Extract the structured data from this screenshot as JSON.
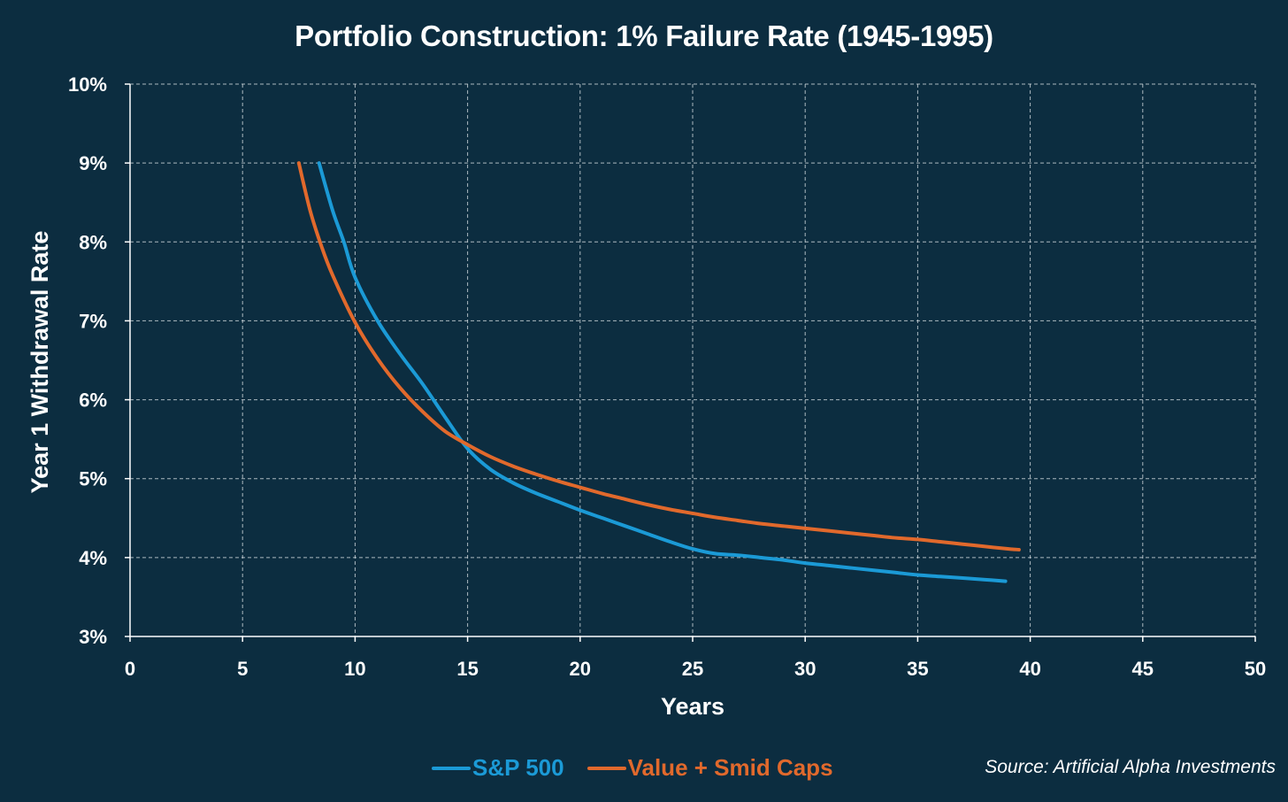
{
  "chart_data": {
    "type": "line",
    "title": "Portfolio Construction: 1% Failure Rate (1945-1995)",
    "xlabel": "Years",
    "ylabel": "Year 1 Withdrawal Rate",
    "xlim": [
      0,
      50
    ],
    "ylim": [
      3,
      10
    ],
    "x_ticks": [
      0,
      5,
      10,
      15,
      20,
      25,
      30,
      35,
      40,
      45,
      50
    ],
    "x_tick_labels": [
      "0",
      "5",
      "10",
      "15",
      "20",
      "25",
      "30",
      "35",
      "40",
      "45",
      "50"
    ],
    "y_ticks": [
      3,
      4,
      5,
      6,
      7,
      8,
      9,
      10
    ],
    "y_tick_labels": [
      "3%",
      "4%",
      "5%",
      "6%",
      "7%",
      "8%",
      "9%",
      "10%"
    ],
    "grid": true,
    "legend_position": "bottom",
    "source": "Source: Artificial Alpha Investments",
    "series": [
      {
        "name": "S&P 500",
        "color": "#1b9ad6",
        "points": [
          [
            8.4,
            9.0
          ],
          [
            9.0,
            8.4
          ],
          [
            9.5,
            8.0
          ],
          [
            10.0,
            7.55
          ],
          [
            11.0,
            7.0
          ],
          [
            12.0,
            6.58
          ],
          [
            13.0,
            6.2
          ],
          [
            14.0,
            5.78
          ],
          [
            15.0,
            5.38
          ],
          [
            16.0,
            5.12
          ],
          [
            17.0,
            4.95
          ],
          [
            18.0,
            4.82
          ],
          [
            19.0,
            4.71
          ],
          [
            20.0,
            4.6
          ],
          [
            21.0,
            4.5
          ],
          [
            22.0,
            4.4
          ],
          [
            23.0,
            4.3
          ],
          [
            24.0,
            4.2
          ],
          [
            25.0,
            4.11
          ],
          [
            26.0,
            4.05
          ],
          [
            27.0,
            4.03
          ],
          [
            28.0,
            4.0
          ],
          [
            29.0,
            3.97
          ],
          [
            30.0,
            3.93
          ],
          [
            31.0,
            3.9
          ],
          [
            32.0,
            3.87
          ],
          [
            33.0,
            3.84
          ],
          [
            34.0,
            3.81
          ],
          [
            35.0,
            3.78
          ],
          [
            36.0,
            3.76
          ],
          [
            37.0,
            3.74
          ],
          [
            38.0,
            3.72
          ],
          [
            38.9,
            3.7
          ]
        ]
      },
      {
        "name": "Value + Smid Caps",
        "color": "#e1692c",
        "points": [
          [
            7.5,
            9.0
          ],
          [
            8.0,
            8.4
          ],
          [
            8.5,
            7.95
          ],
          [
            9.0,
            7.58
          ],
          [
            10.0,
            6.98
          ],
          [
            11.0,
            6.52
          ],
          [
            12.0,
            6.15
          ],
          [
            13.0,
            5.85
          ],
          [
            14.0,
            5.6
          ],
          [
            15.0,
            5.43
          ],
          [
            16.0,
            5.28
          ],
          [
            17.0,
            5.16
          ],
          [
            18.0,
            5.06
          ],
          [
            19.0,
            4.97
          ],
          [
            20.0,
            4.89
          ],
          [
            21.0,
            4.81
          ],
          [
            22.0,
            4.74
          ],
          [
            23.0,
            4.67
          ],
          [
            24.0,
            4.61
          ],
          [
            25.0,
            4.56
          ],
          [
            26.0,
            4.51
          ],
          [
            27.0,
            4.47
          ],
          [
            28.0,
            4.43
          ],
          [
            29.0,
            4.4
          ],
          [
            30.0,
            4.37
          ],
          [
            31.0,
            4.34
          ],
          [
            32.0,
            4.31
          ],
          [
            33.0,
            4.28
          ],
          [
            34.0,
            4.25
          ],
          [
            35.0,
            4.23
          ],
          [
            36.0,
            4.2
          ],
          [
            37.0,
            4.17
          ],
          [
            38.0,
            4.14
          ],
          [
            39.0,
            4.11
          ],
          [
            39.5,
            4.1
          ]
        ]
      }
    ]
  }
}
